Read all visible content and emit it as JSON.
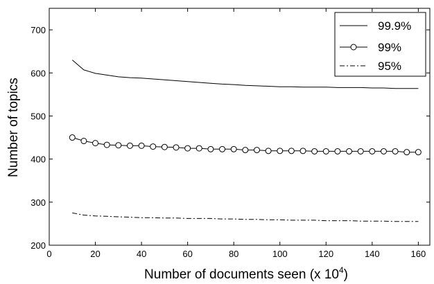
{
  "chart_data": {
    "type": "line",
    "title": "",
    "xlabel": "Number of documents seen (x 10",
    "xlabel_superscript": "4",
    "xlabel_suffix": ")",
    "ylabel": "Number of topics",
    "xlim": [
      0,
      165
    ],
    "ylim": [
      200,
      750
    ],
    "xticks": [
      "0",
      "20",
      "40",
      "60",
      "80",
      "100",
      "120",
      "140",
      "160"
    ],
    "yticks": [
      "200",
      "300",
      "400",
      "500",
      "600",
      "700"
    ],
    "grid": false,
    "legend_position": "top-right",
    "x": [
      10,
      15,
      20,
      25,
      30,
      35,
      40,
      45,
      50,
      55,
      60,
      65,
      70,
      75,
      80,
      85,
      90,
      95,
      100,
      105,
      110,
      115,
      120,
      125,
      130,
      135,
      140,
      145,
      150,
      155,
      160
    ],
    "series": [
      {
        "name": "99.9%",
        "style": "solid",
        "values": [
          630,
          607,
          599,
          595,
          591,
          589,
          588,
          586,
          584,
          582,
          580,
          578,
          576,
          574,
          573,
          571,
          570,
          569,
          568,
          568,
          567,
          567,
          567,
          566,
          566,
          566,
          565,
          565,
          564,
          564,
          564
        ]
      },
      {
        "name": "99%",
        "style": "solid-circle-markers",
        "values": [
          450,
          442,
          437,
          433,
          432,
          431,
          431,
          429,
          428,
          427,
          425,
          425,
          423,
          423,
          423,
          421,
          421,
          419,
          419,
          419,
          419,
          418,
          418,
          418,
          418,
          418,
          418,
          418,
          418,
          416,
          416
        ]
      },
      {
        "name": "95%",
        "style": "dash-dot",
        "values": [
          275,
          270,
          268,
          267,
          266,
          265,
          264,
          264,
          263,
          263,
          262,
          262,
          262,
          261,
          261,
          260,
          260,
          259,
          259,
          258,
          258,
          258,
          257,
          257,
          257,
          256,
          256,
          256,
          255,
          255,
          255
        ]
      }
    ]
  }
}
